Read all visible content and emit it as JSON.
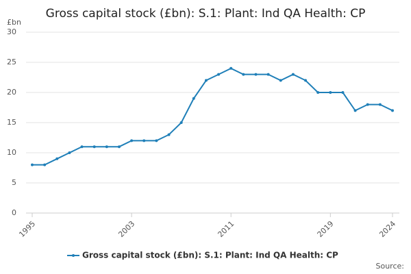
{
  "chart_data": {
    "type": "line",
    "title": "Gross capital stock (£bn): S.1: Plant: Ind QA Health: CP",
    "y_unit": "£bn",
    "source": "Source:",
    "x": [
      1995,
      1996,
      1997,
      1998,
      1999,
      2000,
      2001,
      2002,
      2003,
      2004,
      2005,
      2006,
      2007,
      2008,
      2009,
      2010,
      2011,
      2012,
      2013,
      2014,
      2015,
      2016,
      2017,
      2018,
      2019,
      2020,
      2021,
      2022,
      2023,
      2024
    ],
    "series": [
      {
        "name": "Gross capital stock (£bn): S.1: Plant: Ind QA Health: CP",
        "color": "#1f7fb8",
        "values": [
          8,
          8,
          9,
          10,
          11,
          11,
          11,
          11,
          12,
          12,
          12,
          13,
          15,
          19,
          22,
          23,
          24,
          23,
          23,
          23,
          22,
          23,
          22,
          20,
          20,
          20,
          17,
          18,
          18,
          17
        ]
      }
    ],
    "xlim": [
      1995,
      2024
    ],
    "xticks": [
      1995,
      2003,
      2011,
      2019,
      2024
    ],
    "ylim": [
      0,
      30
    ],
    "yticks": [
      0,
      5,
      10,
      15,
      20,
      25,
      30
    ],
    "grid": true,
    "legend": "bottom"
  }
}
